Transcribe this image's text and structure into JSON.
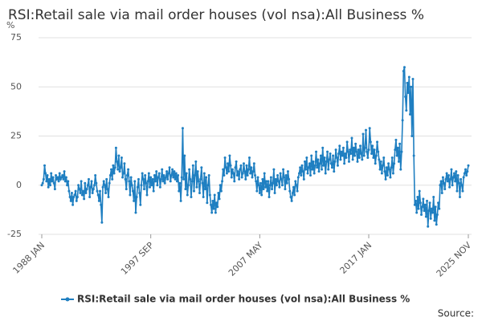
{
  "chart_data": {
    "type": "line",
    "title": "RSI:Retail sale via mail order houses (vol nsa):All Business %",
    "y_label": "%",
    "source": "Source:",
    "ylim": [
      -25,
      75
    ],
    "yticks": [
      -25,
      0,
      25,
      50,
      75
    ],
    "grid": true,
    "categories": [
      "1988 JAN",
      null,
      null,
      null,
      null,
      null,
      null,
      null,
      null,
      null,
      null,
      null,
      null,
      null,
      null,
      null,
      null,
      null,
      null,
      null,
      null,
      null,
      null,
      null,
      null,
      null,
      null,
      null,
      null,
      null,
      null,
      null,
      null,
      null,
      null,
      null,
      null,
      null,
      null,
      null,
      null,
      null,
      null,
      null,
      null,
      null,
      null,
      null,
      null,
      null,
      null,
      null,
      null,
      null,
      null,
      null,
      null,
      null,
      null,
      null,
      null,
      null,
      null,
      null,
      null,
      null,
      null,
      null,
      null,
      null,
      null,
      null,
      null,
      null,
      null,
      null,
      null,
      null,
      null,
      null,
      null,
      null,
      null,
      null,
      null,
      null,
      null,
      null,
      null,
      null,
      null,
      null,
      null,
      null,
      null,
      null,
      null,
      null,
      null,
      null,
      null,
      null,
      null,
      null,
      null,
      null,
      null,
      null,
      null,
      null,
      null,
      null,
      null,
      null,
      null,
      null,
      "1997 SEP",
      null,
      null,
      null,
      null,
      null,
      null,
      null,
      null,
      null,
      null,
      null,
      null,
      null,
      null,
      null,
      null,
      null,
      null,
      null,
      null,
      null,
      null,
      null,
      null,
      null,
      null,
      null,
      null,
      null,
      null,
      null,
      null,
      null,
      null,
      null,
      null,
      null,
      null,
      null,
      null,
      null,
      null,
      null,
      null,
      null,
      null,
      null,
      null,
      null,
      null,
      null,
      null,
      null,
      null,
      null,
      null,
      null,
      null,
      null,
      null,
      null,
      null,
      null,
      null,
      null,
      null,
      null,
      null,
      null,
      null,
      null,
      null,
      null,
      null,
      null,
      null,
      null,
      null,
      null,
      null,
      null,
      null,
      null,
      null,
      null,
      null,
      null,
      null,
      null,
      null,
      null,
      null,
      null,
      null,
      null,
      null,
      null,
      null,
      null,
      null,
      null,
      null,
      null,
      null,
      null,
      null,
      null,
      null,
      null,
      null,
      null,
      null,
      null,
      null,
      null,
      "2007 MAY",
      null,
      null,
      null,
      null,
      null,
      null,
      null,
      null,
      null,
      null,
      null,
      null,
      null,
      null,
      null,
      null,
      null,
      null,
      null,
      null,
      null,
      null,
      null,
      null,
      null,
      null,
      null,
      null,
      null,
      null,
      null,
      null,
      null,
      null,
      null,
      null,
      null,
      null,
      null,
      null,
      null,
      null,
      null,
      null,
      null,
      null,
      null,
      null,
      null,
      null,
      null,
      null,
      null,
      null,
      null,
      null,
      null,
      null,
      null,
      null,
      null,
      null,
      null,
      null,
      null,
      null,
      null,
      null,
      null,
      null,
      null,
      null,
      null,
      null,
      null,
      null,
      null,
      null,
      null,
      null,
      null,
      null,
      null,
      null,
      null,
      null,
      null,
      null,
      null,
      null,
      null,
      null,
      null,
      null,
      null,
      null,
      null,
      null,
      null,
      null,
      null,
      null,
      null,
      null,
      null,
      null,
      null,
      null,
      null,
      null,
      null,
      null,
      null,
      null,
      null,
      "2017 JAN",
      null,
      null,
      null,
      null,
      null,
      null,
      null,
      null,
      null,
      null,
      null,
      null,
      null,
      null,
      null,
      null,
      null,
      null,
      null,
      null,
      null,
      null,
      null,
      null,
      null,
      null,
      null,
      null,
      null,
      null,
      null,
      null,
      null,
      null,
      null,
      null,
      null,
      null,
      null,
      null,
      null,
      null,
      null,
      null,
      null,
      null,
      null,
      null,
      null,
      null,
      null,
      null,
      null,
      null,
      null,
      null,
      null,
      null,
      null,
      null,
      null,
      null,
      null,
      null,
      null,
      null,
      null,
      null,
      null,
      null,
      null,
      null,
      null,
      null,
      null,
      null,
      null,
      null,
      null,
      null,
      null,
      null,
      null,
      null,
      null,
      null,
      null,
      null,
      null,
      null,
      null,
      null,
      null,
      null,
      null,
      null,
      null,
      null,
      null,
      null,
      null,
      null,
      null,
      null,
      null,
      "2025 NOV"
    ],
    "series": [
      {
        "name": "RSI:Retail sale via mail order houses (vol nsa):All Business %",
        "color": "#1f7fc1",
        "values": [
          0,
          1,
          3,
          10,
          6,
          2,
          5,
          -1,
          3,
          0,
          6,
          2,
          4,
          1,
          -2,
          5,
          3,
          4,
          2,
          6,
          3,
          4,
          5,
          3,
          7,
          2,
          4,
          0,
          2,
          -3,
          -6,
          -8,
          -4,
          -10,
          -6,
          -5,
          -3,
          -8,
          -6,
          0,
          -2,
          -4,
          2,
          -5,
          -3,
          -7,
          1,
          -4,
          -2,
          0,
          3,
          -6,
          -1,
          2,
          -4,
          -2,
          0,
          5,
          1,
          -3,
          -5,
          -8,
          -3,
          -10,
          -19,
          -1,
          2,
          0,
          -4,
          3,
          -2,
          -6,
          1,
          5,
          8,
          3,
          10,
          6,
          9,
          19,
          12,
          8,
          15,
          7,
          9,
          14,
          4,
          6,
          11,
          3,
          -2,
          5,
          8,
          2,
          -5,
          4,
          0,
          -3,
          -8,
          2,
          -14,
          -6,
          -1,
          3,
          -4,
          -10,
          0,
          6,
          3,
          -2,
          5,
          1,
          -5,
          2,
          6,
          -1,
          4,
          0,
          3,
          -3,
          5,
          2,
          7,
          0,
          4,
          6,
          -1,
          3,
          8,
          2,
          5,
          1,
          4,
          7,
          3,
          6,
          9,
          2,
          5,
          8,
          4,
          7,
          3,
          6,
          2,
          5,
          -3,
          1,
          -8,
          4,
          29,
          3,
          15,
          -2,
          6,
          -5,
          0,
          8,
          3,
          -6,
          2,
          10,
          -3,
          5,
          12,
          -1,
          7,
          2,
          -4,
          3,
          9,
          1,
          -6,
          6,
          -2,
          4,
          -9,
          0,
          5,
          -5,
          -10,
          -14,
          -8,
          -12,
          -5,
          -14,
          -9,
          -11,
          -4,
          -7,
          0,
          -3,
          2,
          8,
          5,
          14,
          9,
          6,
          11,
          7,
          15,
          10,
          4,
          8,
          6,
          2,
          9,
          12,
          5,
          7,
          3,
          8,
          10,
          4,
          6,
          11,
          7,
          3,
          10,
          5,
          8,
          14,
          6,
          9,
          4,
          7,
          11,
          5,
          2,
          -3,
          4,
          0,
          -4,
          1,
          -5,
          3,
          -2,
          6,
          -1,
          2,
          -3,
          2,
          -6,
          0,
          4,
          -2,
          1,
          8,
          -4,
          3,
          0,
          5,
          2,
          -1,
          6,
          3,
          0,
          8,
          4,
          -2,
          5,
          1,
          7,
          3,
          -3,
          -6,
          -8,
          -4,
          -1,
          -5,
          2,
          0,
          -3,
          4,
          6,
          9,
          5,
          10,
          7,
          3,
          12,
          8,
          14,
          6,
          9,
          11,
          5,
          15,
          8,
          12,
          6,
          10,
          17,
          9,
          13,
          7,
          11,
          15,
          8,
          19,
          10,
          14,
          6,
          12,
          17,
          8,
          13,
          16,
          11,
          9,
          15,
          7,
          12,
          18,
          14,
          10,
          16,
          20,
          13,
          17,
          15,
          19,
          11,
          16,
          14,
          22,
          17,
          12,
          18,
          16,
          24,
          13,
          19,
          15,
          21,
          17,
          12,
          18,
          14,
          20,
          16,
          13,
          26,
          15,
          19,
          28,
          17,
          14,
          18,
          29,
          22,
          16,
          20,
          14,
          18,
          11,
          15,
          22,
          17,
          13,
          8,
          12,
          6,
          10,
          14,
          7,
          3,
          9,
          5,
          11,
          8,
          4,
          9,
          14,
          6,
          11,
          18,
          23,
          15,
          19,
          12,
          21,
          8,
          17,
          33,
          58,
          60,
          45,
          38,
          52,
          47,
          55,
          36,
          50,
          25,
          54,
          15,
          -10,
          -8,
          -14,
          -6,
          -12,
          -3,
          -9,
          -15,
          -11,
          -7,
          -13,
          -10,
          -16,
          -8,
          -21,
          -13,
          -9,
          -17,
          -12,
          -14,
          -6,
          -18,
          -11,
          -20,
          -15,
          -9,
          -12,
          0,
          2,
          -4,
          4,
          1,
          -2,
          3,
          6,
          2,
          5,
          -1,
          3,
          8,
          0,
          4,
          6,
          2,
          7,
          -3,
          5,
          1,
          -6,
          3,
          0,
          -3,
          4,
          6,
          8,
          5,
          7,
          10
        ]
      }
    ]
  }
}
